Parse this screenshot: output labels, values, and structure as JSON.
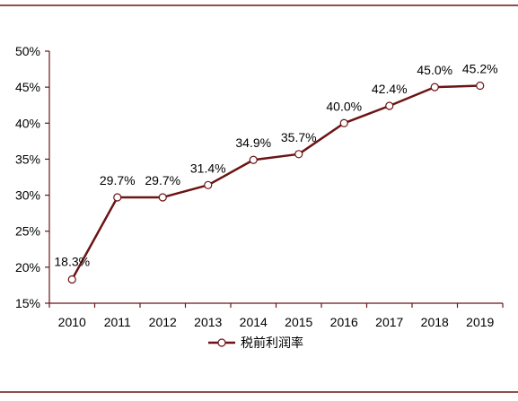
{
  "chart_data": {
    "type": "line",
    "title": "",
    "xlabel": "",
    "ylabel": "",
    "categories": [
      "2010",
      "2011",
      "2012",
      "2013",
      "2014",
      "2015",
      "2016",
      "2017",
      "2018",
      "2019"
    ],
    "series": [
      {
        "name": "税前利润率",
        "values": [
          18.3,
          29.7,
          29.7,
          31.4,
          34.9,
          35.7,
          40.0,
          42.4,
          45.0,
          45.2
        ],
        "labels": [
          "18.3%",
          "29.7%",
          "29.7%",
          "31.4%",
          "34.9%",
          "35.7%",
          "40.0%",
          "42.4%",
          "45.0%",
          "45.2%"
        ],
        "color": "#6b1414"
      }
    ],
    "ylim": [
      15,
      50
    ],
    "yticks": [
      "15%",
      "20%",
      "25%",
      "30%",
      "35%",
      "40%",
      "45%",
      "50%"
    ],
    "grid": false,
    "legend_position": "bottom",
    "frame_color": "#6b1414"
  }
}
